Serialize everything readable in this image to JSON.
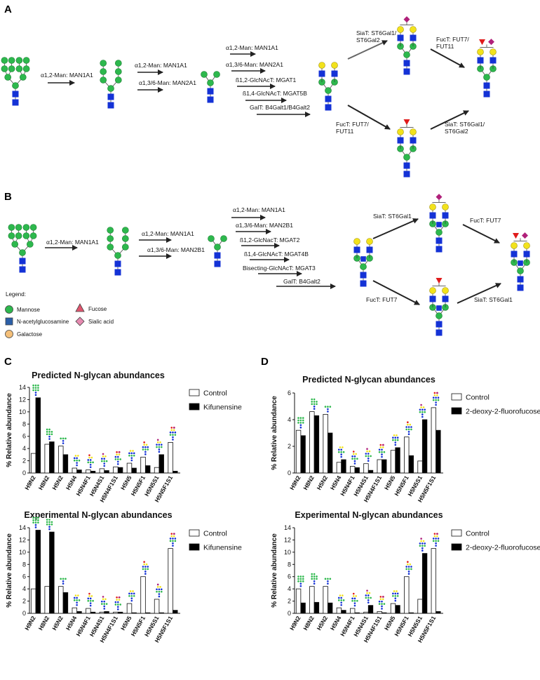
{
  "panels": {
    "A": {
      "letter": "A",
      "steps": [
        "α1,2-Man: MAN1A1",
        "α1,2-Man: MAN1A1",
        "α1,3/6-Man: MAN2A1",
        "α1,2-Man: MAN1A1",
        "α1,3/6-Man: MAN2A1",
        "ß1,2-GlcNAcT: MGAT1",
        "ß1,4-GlcNAcT: MGAT5B",
        "GalT: B4Galt1/B4Galt2"
      ],
      "branch_upper_1": [
        "SiaT: ST6Gal1/",
        "ST6Gal2"
      ],
      "branch_upper_2": [
        "FucT: FUT7/",
        "FUT11"
      ],
      "branch_lower_1": [
        "FucT: FUT7/",
        "FUT11"
      ],
      "branch_lower_2": [
        "SiaT: ST6Gal1/",
        "ST6Gal2"
      ]
    },
    "B": {
      "letter": "B",
      "steps": [
        "α1,2-Man: MAN1A1",
        "α1,2-Man: MAN1A1",
        "α1,3/6-Man: MAN2B1",
        "α1,2-Man: MAN1A1",
        "α1,3/6-Man: MAN2B1",
        "ß1,2-GlcNacT: MGAT2",
        "ß1,4-GlcNAcT: MGAT4B",
        "Bisecting-GlcNAcT: MGAT3",
        "GalT: B4Galt2"
      ],
      "branch_upper_1": "SiaT: ST6Gal1",
      "branch_upper_2": "FucT: FUT7",
      "branch_lower_1": "FucT: FUT7",
      "branch_lower_2": "SiaT: ST6Gal1"
    },
    "C": "C",
    "D": "D"
  },
  "legend": {
    "title": "Legend:",
    "items": [
      "Mannose",
      "N-acetylglucosamine",
      "Galactose",
      "Fucose",
      "Sialic acid"
    ]
  },
  "colors": {
    "mannose": "#2db84d",
    "glcnac": "#1432d6",
    "galactose": "#f2e21c",
    "fucose": "#e01b1b",
    "sialic": "#b0207a",
    "control": "#ffffff",
    "treated": "#000000"
  },
  "chart_data": [
    {
      "id": "C-pred",
      "type": "bar",
      "title": "Predicted N-glycan abundances",
      "ylabel": "% Relative abundance",
      "ylim": [
        0,
        14
      ],
      "yticks": [
        0,
        2,
        4,
        6,
        8,
        10,
        12,
        14
      ],
      "categories": [
        "H9N2",
        "H8N2",
        "H5N2",
        "H5N4",
        "H5N4F1",
        "H5N4S1",
        "H5N4F1S1",
        "H5N5",
        "H5N5F1",
        "H5N5S1",
        "H5N5F1S1"
      ],
      "series": [
        {
          "name": "Control",
          "values": [
            3.2,
            4.7,
            4.4,
            0.8,
            0.5,
            0.7,
            1.0,
            1.6,
            2.6,
            0.9,
            5.0
          ]
        },
        {
          "name": "Kifunensine",
          "values": [
            12.3,
            5.1,
            3.0,
            0.5,
            0.3,
            0.4,
            0.9,
            0.8,
            1.2,
            3.0,
            0.3
          ]
        }
      ]
    },
    {
      "id": "C-exp",
      "type": "bar",
      "title": "Experimental N-glycan abundances",
      "ylabel": "% Relative abundance",
      "ylim": [
        0,
        14
      ],
      "yticks": [
        0,
        2,
        4,
        6,
        8,
        10,
        12,
        14
      ],
      "categories": [
        "H9N2",
        "H8N2",
        "H5N2",
        "H5N4",
        "H5N4F1",
        "H5N4S1",
        "H5N4F1S1",
        "H5N5",
        "H5N5F1",
        "H5N5S1",
        "H5N5F1S1"
      ],
      "series": [
        {
          "name": "Control",
          "values": [
            4.0,
            4.4,
            4.4,
            0.9,
            0.8,
            0.2,
            0.2,
            1.6,
            6.0,
            2.3,
            10.6
          ]
        },
        {
          "name": "Kifunensine",
          "values": [
            13.6,
            13.3,
            3.4,
            0.3,
            0.2,
            0.3,
            0.2,
            0.1,
            0.1,
            0.1,
            0.5
          ]
        }
      ]
    },
    {
      "id": "D-pred",
      "type": "bar",
      "title": "Predicted N-glycan abundances",
      "ylabel": "% Relative abundance",
      "ylim": [
        0,
        6
      ],
      "yticks": [
        0,
        2,
        4,
        6
      ],
      "categories": [
        "H9N2",
        "H8N2",
        "H5N2",
        "H5N4",
        "H5N4F1",
        "H5N4S1",
        "H5N4F1S1",
        "H5N5",
        "H5N5F1",
        "H5N5S1",
        "H5N5F1S1"
      ],
      "series": [
        {
          "name": "Control",
          "values": [
            3.2,
            4.6,
            4.4,
            0.8,
            0.5,
            0.7,
            1.0,
            1.7,
            2.7,
            0.9,
            4.9
          ]
        },
        {
          "name": "2-deoxy-2-fluorofucose",
          "values": [
            2.8,
            4.3,
            3.0,
            1.0,
            0.4,
            0.2,
            1.0,
            1.9,
            1.3,
            4.0,
            3.2
          ]
        }
      ]
    },
    {
      "id": "D-exp",
      "type": "bar",
      "title": "Experimental N-glycan abundances",
      "ylabel": "% Relative abundance",
      "ylim": [
        0,
        14
      ],
      "yticks": [
        0,
        2,
        4,
        6,
        8,
        10,
        12,
        14
      ],
      "categories": [
        "H9N2",
        "H8N2",
        "H5N2",
        "H5N4",
        "H5N4F1",
        "H5N4S1",
        "H5N4F1S1",
        "H5N5",
        "H5N5F1",
        "H5N5S1",
        "H5N5F1S1"
      ],
      "series": [
        {
          "name": "Control",
          "values": [
            4.0,
            4.4,
            4.4,
            0.9,
            0.8,
            0.2,
            0.3,
            1.6,
            6.0,
            2.3,
            10.6
          ]
        },
        {
          "name": "2-deoxy-2-fluorofucose",
          "values": [
            1.7,
            1.8,
            1.7,
            0.5,
            0.1,
            1.3,
            0.1,
            1.3,
            0.1,
            9.8,
            0.3
          ]
        }
      ]
    }
  ]
}
